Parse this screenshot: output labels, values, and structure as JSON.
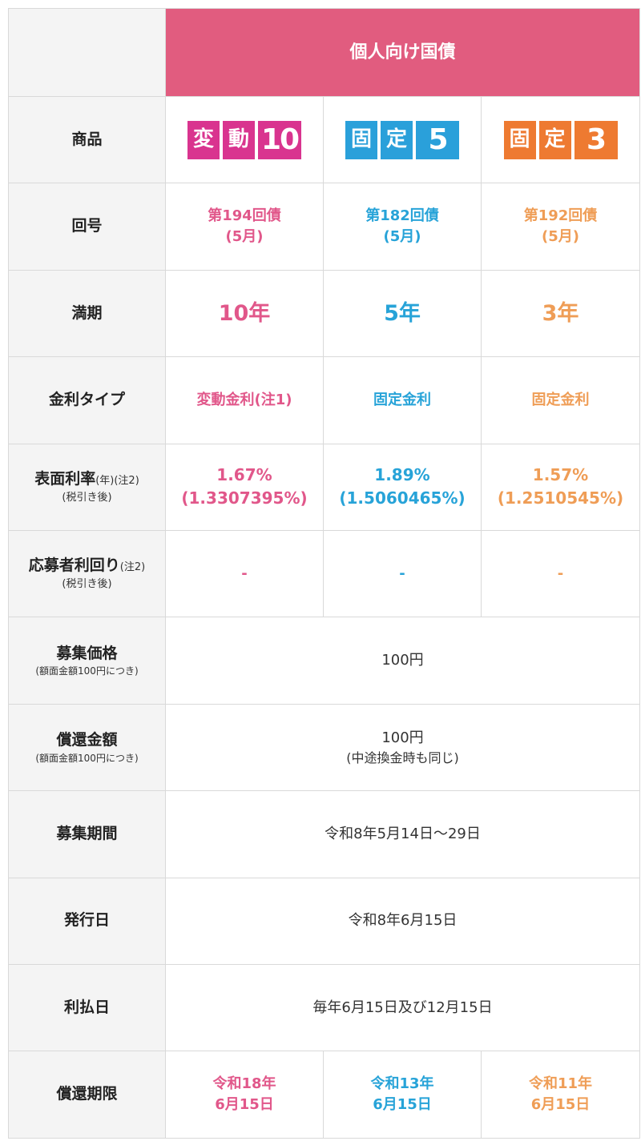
{
  "banner": "個人向け国債",
  "colors": {
    "floating10": "#e1578a",
    "fixed5": "#27a3d8",
    "fixed3": "#ef9d56",
    "banner_bg": "#e15c7f"
  },
  "products": [
    {
      "k1": "変",
      "k2": "動",
      "num": "10",
      "color": "#d9348f"
    },
    {
      "k1": "固",
      "k2": "定",
      "num": "5",
      "color": "#2aa0da"
    },
    {
      "k1": "固",
      "k2": "定",
      "num": "3",
      "color": "#ee7a31"
    }
  ],
  "rows": {
    "product": {
      "label": "商品"
    },
    "issue": {
      "label": "回号",
      "values": [
        [
          "第194回債",
          "(5月)"
        ],
        [
          "第182回債",
          "(5月)"
        ],
        [
          "第192回債",
          "(5月)"
        ]
      ]
    },
    "maturity": {
      "label": "満期",
      "values": [
        "10年",
        "5年",
        "3年"
      ]
    },
    "rate_type": {
      "label": "金利タイプ",
      "values": [
        "変動金利(注1)",
        "固定金利",
        "固定金利"
      ]
    },
    "coupon": {
      "label": "表面利率",
      "label_suffix": "(年)(注2)",
      "sub": "(税引き後)",
      "values": [
        [
          "1.67%",
          "(1.3307395%)"
        ],
        [
          "1.89%",
          "(1.5060465%)"
        ],
        [
          "1.57%",
          "(1.2510545%)"
        ]
      ]
    },
    "yield": {
      "label": "応募者利回り",
      "label_suffix": "(注2)",
      "sub": "(税引き後)",
      "values": [
        "-",
        "-",
        "-"
      ]
    },
    "price": {
      "label": "募集価格",
      "sub": "(額面金額100円につき)",
      "value": "100円"
    },
    "redemption": {
      "label": "償還金額",
      "sub": "(額面金額100円につき)",
      "value": "100円",
      "note": "(中途換金時も同じ)"
    },
    "period": {
      "label": "募集期間",
      "value": "令和8年5月14日～29日"
    },
    "issue_date": {
      "label": "発行日",
      "value": "令和8年6月15日"
    },
    "interest": {
      "label": "利払日",
      "value": "毎年6月15日及び12月15日"
    },
    "maturity_date": {
      "label": "償還期限",
      "values": [
        [
          "令和18年",
          "6月15日"
        ],
        [
          "令和13年",
          "6月15日"
        ],
        [
          "令和11年",
          "6月15日"
        ]
      ]
    }
  }
}
